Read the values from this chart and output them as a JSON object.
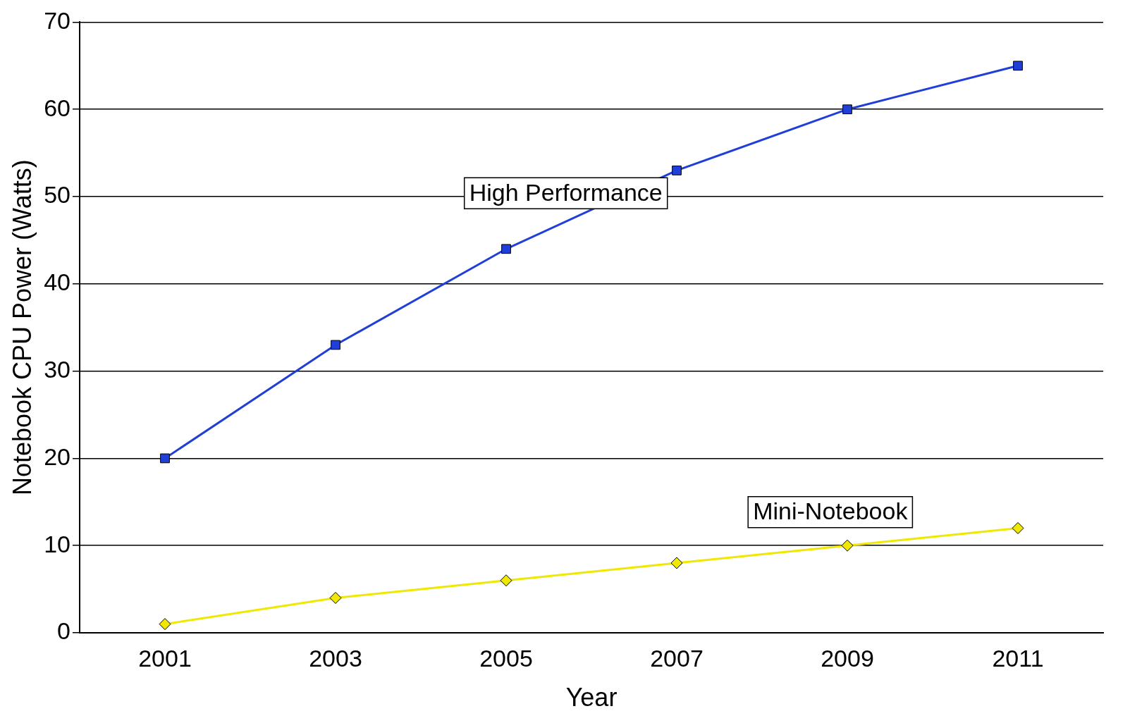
{
  "chart_data": {
    "type": "line",
    "xlabel": "Year",
    "ylabel": "Notebook CPU Power (Watts)",
    "categories": [
      "2001",
      "2003",
      "2005",
      "2007",
      "2009",
      "2011"
    ],
    "series": [
      {
        "name": "High Performance",
        "color": "#1f3fd8",
        "marker": "square",
        "values": [
          20,
          33,
          44,
          53,
          60,
          65
        ]
      },
      {
        "name": "Mini-Notebook",
        "color": "#f0e800",
        "marker": "diamond",
        "values": [
          1,
          4,
          6,
          8,
          10,
          12
        ]
      }
    ],
    "ylim": [
      0,
      70
    ],
    "yticks": [
      0,
      10,
      20,
      30,
      40,
      50,
      60,
      70
    ],
    "grid": "y",
    "legend": false,
    "line_style": "solid"
  }
}
